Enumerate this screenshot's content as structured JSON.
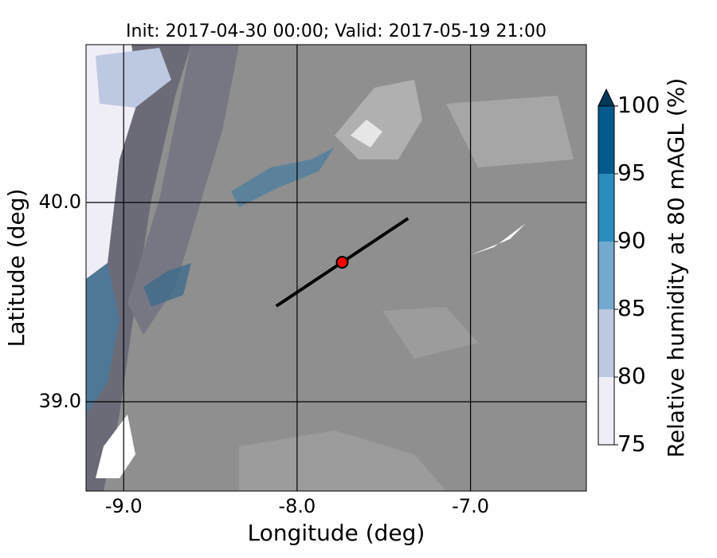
{
  "chart_data": {
    "type": "map",
    "title": "Init: 2017-04-30 00:00; Valid: 2017-05-19 21:00",
    "x_label": "Longitude (deg)",
    "y_label": "Latitude (deg)",
    "xlim": [
      -9.217,
      -6.332
    ],
    "ylim": [
      38.552,
      40.792
    ],
    "xticks": [
      {
        "value": -9,
        "label": "-9.0"
      },
      {
        "value": -8,
        "label": "-8.0"
      },
      {
        "value": -7,
        "label": "-7.0"
      }
    ],
    "yticks": [
      {
        "value": 39,
        "label": "39.0"
      },
      {
        "value": 40,
        "label": "40.0"
      }
    ],
    "grid": true,
    "section": {
      "lon": [
        -8.12,
        -7.36
      ],
      "lat": [
        39.48,
        39.92
      ],
      "color": "#000000"
    },
    "point": {
      "lon": -7.74,
      "lat": 39.7,
      "color": "#ff0000"
    },
    "colorbar": {
      "label": "Relative humidity at 80 mAGL (%)",
      "ticks": [
        75,
        80,
        85,
        90,
        95,
        100
      ],
      "colors": [
        "#efedf5",
        "#bdc9e1",
        "#74a9cf",
        "#2b8cbe",
        "#045a8d"
      ],
      "extend_color": "#023858"
    }
  }
}
